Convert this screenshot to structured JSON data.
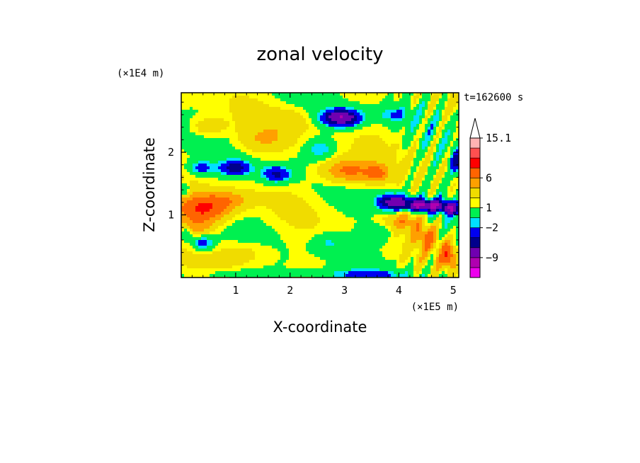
{
  "chart_data": {
    "type": "heatmap",
    "title": "zonal velocity",
    "xlabel": "X-coordinate",
    "ylabel": "Z-coordinate",
    "x_scale_label": "(×1E5 m)",
    "y_scale_label": "(×1E4 m)",
    "time_label": "t=162600 s",
    "xlim": [
      0,
      5.1
    ],
    "ylim": [
      0,
      2.95
    ],
    "x_ticks": [
      1,
      2,
      3,
      4,
      5
    ],
    "y_ticks": [
      1,
      2
    ],
    "colorbar": {
      "levels": [
        -15.1,
        -12,
        -9,
        -6,
        -4,
        -2,
        -1,
        1,
        2,
        4,
        6,
        9,
        12,
        15.1
      ],
      "colors": [
        "#ee00ee",
        "#b000b0",
        "#7000b0",
        "#00008c",
        "#0000f0",
        "#00e0ff",
        "#00f050",
        "#ffff00",
        "#f0dc00",
        "#ffa000",
        "#ff6400",
        "#ff0000",
        "#ff5050",
        "#ffb4b4"
      ],
      "labels": [
        {
          "value": 15.1,
          "text": "15.1"
        },
        {
          "value": 6,
          "text": "6"
        },
        {
          "value": 1,
          "text": "1"
        },
        {
          "value": -2,
          "text": "−2"
        },
        {
          "value": -9,
          "text": "−9"
        }
      ],
      "extend_max_color": "#ffffff"
    },
    "features": [
      {
        "x": 0.4,
        "z": 1.1,
        "amp": 8.5,
        "sx": 0.5,
        "sz": 0.22
      },
      {
        "x": 0.3,
        "z": 0.8,
        "amp": 3,
        "sx": 0.3,
        "sz": 0.15
      },
      {
        "x": 0.9,
        "z": 1.25,
        "amp": 3,
        "sx": 0.4,
        "sz": 0.15
      },
      {
        "x": 0.4,
        "z": 0.55,
        "amp": -5,
        "sx": 0.2,
        "sz": 0.12
      },
      {
        "x": 0.1,
        "z": 0.7,
        "amp": -4,
        "sx": 0.1,
        "sz": 0.1
      },
      {
        "x": 0.05,
        "z": 1.4,
        "amp": -4,
        "sx": 0.1,
        "sz": 0.1
      },
      {
        "x": 0.35,
        "z": 1.75,
        "amp": -4,
        "sx": 0.25,
        "sz": 0.12
      },
      {
        "x": 1.0,
        "z": 1.75,
        "amp": -6,
        "sx": 0.3,
        "sz": 0.12
      },
      {
        "x": 1.75,
        "z": 1.65,
        "amp": -6,
        "sx": 0.28,
        "sz": 0.14
      },
      {
        "x": 2.55,
        "z": 2.05,
        "amp": -3,
        "sx": 0.25,
        "sz": 0.15
      },
      {
        "x": 2.85,
        "z": 2.55,
        "amp": -7,
        "sx": 0.3,
        "sz": 0.14
      },
      {
        "x": 3.1,
        "z": 2.55,
        "amp": -5,
        "sx": 0.3,
        "sz": 0.14
      },
      {
        "x": 3.05,
        "z": 1.7,
        "amp": 6,
        "sx": 0.5,
        "sz": 0.2
      },
      {
        "x": 3.6,
        "z": 1.65,
        "amp": 4.5,
        "sx": 0.2,
        "sz": 0.13
      },
      {
        "x": 3.9,
        "z": 1.2,
        "amp": -9,
        "sx": 0.3,
        "sz": 0.13
      },
      {
        "x": 4.5,
        "z": 1.15,
        "amp": -11,
        "sx": 0.35,
        "sz": 0.1
      },
      {
        "x": 4.95,
        "z": 1.1,
        "amp": -8,
        "sx": 0.15,
        "sz": 0.1
      },
      {
        "x": 4.1,
        "z": 0.9,
        "amp": 4,
        "sx": 0.3,
        "sz": 0.15
      },
      {
        "x": 4.5,
        "z": 0.65,
        "amp": 5,
        "sx": 0.2,
        "sz": 0.2
      },
      {
        "x": 4.9,
        "z": 0.35,
        "amp": 7,
        "sx": 0.15,
        "sz": 0.2
      },
      {
        "x": 5.05,
        "z": 1.85,
        "amp": -6,
        "sx": 0.1,
        "sz": 0.2
      },
      {
        "x": 2.7,
        "z": 0.55,
        "amp": -2.5,
        "sx": 0.3,
        "sz": 0.15
      },
      {
        "x": 3.6,
        "z": 0.7,
        "amp": -2.5,
        "sx": 0.3,
        "sz": 0.15
      },
      {
        "x": 1.2,
        "z": 0.4,
        "amp": 2,
        "sx": 0.5,
        "sz": 0.2
      },
      {
        "x": 1.5,
        "z": 2.2,
        "amp": 2.5,
        "sx": 0.5,
        "sz": 0.2
      },
      {
        "x": 0.5,
        "z": 2.4,
        "amp": 3,
        "sx": 0.3,
        "sz": 0.15
      },
      {
        "x": 2.0,
        "z": 2.5,
        "amp": 2,
        "sx": 0.4,
        "sz": 0.2
      },
      {
        "x": 3.9,
        "z": 2.6,
        "amp": -3,
        "sx": 0.3,
        "sz": 0.12
      },
      {
        "x": 1.0,
        "z": 0.05,
        "amp": -2,
        "sx": 0.8,
        "sz": 0.08
      },
      {
        "x": 3.3,
        "z": 0.05,
        "amp": -3,
        "sx": 1.0,
        "sz": 0.08
      }
    ]
  }
}
